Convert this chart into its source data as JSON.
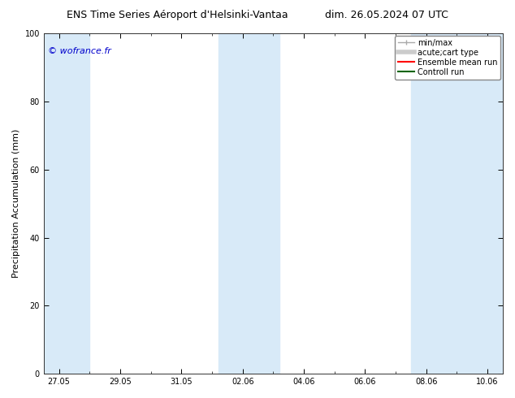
{
  "title_left": "ENS Time Series Aéroport d'Helsinki-Vantaa",
  "title_right": "dim. 26.05.2024 07 UTC",
  "ylabel": "Precipitation Accumulation (mm)",
  "ylim": [
    0,
    100
  ],
  "yticks": [
    0,
    20,
    40,
    60,
    80,
    100
  ],
  "xtick_labels": [
    "27.05",
    "29.05",
    "31.05",
    "02.06",
    "04.06",
    "06.06",
    "08.06",
    "10.06"
  ],
  "tick_positions": [
    0,
    2,
    4,
    6,
    8,
    10,
    12,
    14
  ],
  "xlim": [
    -0.5,
    14.5
  ],
  "background_color": "#ffffff",
  "plot_bg_color": "#ffffff",
  "shaded_bands": [
    {
      "x_start": -0.5,
      "x_end": 1.0
    },
    {
      "x_start": 5.2,
      "x_end": 7.2
    },
    {
      "x_start": 11.5,
      "x_end": 14.5
    }
  ],
  "shaded_color": "#d8eaf8",
  "watermark_text": "© wofrance.fr",
  "watermark_color": "#0000cc",
  "legend_items": [
    {
      "label": "min/max",
      "color": "#aaaaaa",
      "lw": 1.0
    },
    {
      "label": "acute;cart type",
      "color": "#cccccc",
      "lw": 4.0
    },
    {
      "label": "Ensemble mean run",
      "color": "#ff0000",
      "lw": 1.5
    },
    {
      "label": "Controll run",
      "color": "#006400",
      "lw": 1.5
    }
  ],
  "title_fontsize": 9,
  "ylabel_fontsize": 8,
  "tick_fontsize": 7,
  "watermark_fontsize": 8,
  "legend_fontsize": 7
}
